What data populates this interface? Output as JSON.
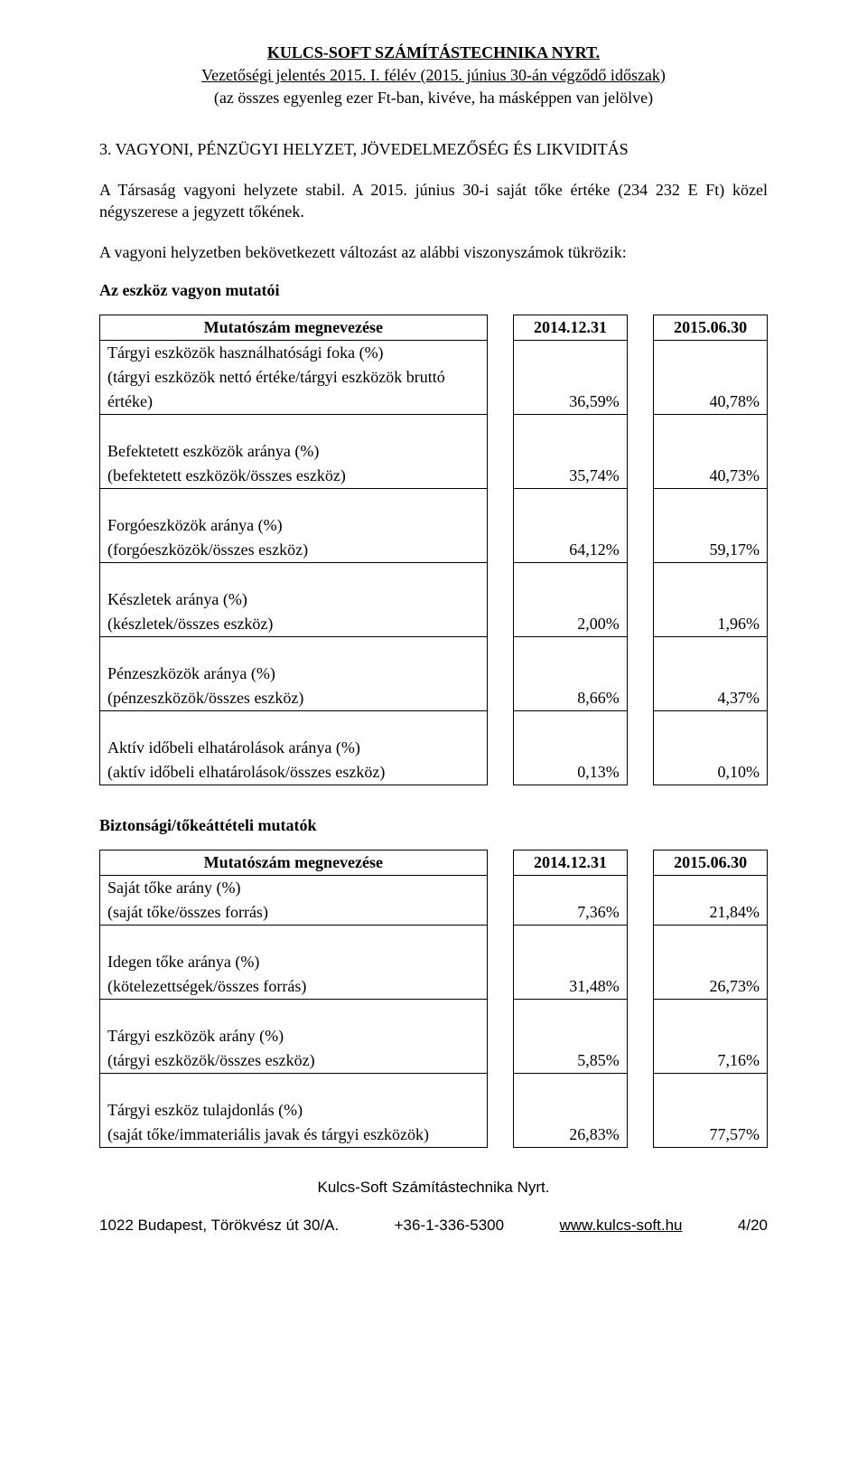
{
  "header": {
    "title": "KULCS-SOFT SZÁMÍTÁSTECHNIKA NYRT.",
    "subtitle": "Vezetőségi jelentés 2015. I. félév (2015. június 30-án végződő időszak)",
    "note": "(az összes egyenleg ezer Ft-ban, kivéve, ha másképpen van jelölve)"
  },
  "section": {
    "heading": "3.    VAGYONI, PÉNZÜGYI HELYZET, JÖVEDELMEZŐSÉG ÉS LIKVIDITÁS",
    "p1": "A Társaság vagyoni helyzete stabil. A 2015. június 30-i saját tőke értéke (234 232 E Ft) közel négyszerese a jegyzett tőkének.",
    "p2": "A vagyoni helyzetben bekövetkezett változást az alábbi viszonyszámok tükrözik:"
  },
  "table1": {
    "title": "Az eszköz vagyon mutatói",
    "col_label": "Mutatószám megnevezése",
    "col1": "2014.12.31",
    "col2": "2015.06.30",
    "rows": [
      {
        "l1": "Tárgyi eszközök használhatósági foka (%)",
        "l2": "(tárgyi eszközök nettó értéke/tárgyi eszközök bruttó",
        "l3": "értéke)",
        "v1": "36,59%",
        "v2": "40,78%"
      },
      {
        "l1": "Befektetett eszközök aránya (%)",
        "l2": "(befektetett eszközök/összes eszköz)",
        "v1": "35,74%",
        "v2": "40,73%"
      },
      {
        "l1": "Forgóeszközök aránya (%)",
        "l2": "(forgóeszközök/összes eszköz)",
        "v1": "64,12%",
        "v2": "59,17%"
      },
      {
        "l1": "Készletek aránya (%)",
        "l2": "(készletek/összes eszköz)",
        "v1": "2,00%",
        "v2": "1,96%"
      },
      {
        "l1": "Pénzeszközök aránya (%)",
        "l2": "(pénzeszközök/összes eszköz)",
        "v1": "8,66%",
        "v2": "4,37%"
      },
      {
        "l1": "Aktív időbeli elhatárolások aránya (%)",
        "l2": "(aktív időbeli elhatárolások/összes eszköz)",
        "v1": "0,13%",
        "v2": "0,10%"
      }
    ]
  },
  "table2": {
    "title": "Biztonsági/tőkeáttételi mutatók",
    "col_label": "Mutatószám megnevezése",
    "col1": "2014.12.31",
    "col2": "2015.06.30",
    "rows": [
      {
        "l1": "Saját tőke arány (%)",
        "l2": "(saját tőke/összes forrás)",
        "v1": "7,36%",
        "v2": "21,84%"
      },
      {
        "l1": "Idegen tőke aránya (%)",
        "l2": "(kötelezettségek/összes forrás)",
        "v1": "31,48%",
        "v2": "26,73%"
      },
      {
        "l1": "Tárgyi eszközök arány (%)",
        "l2": "(tárgyi eszközök/összes eszköz)",
        "v1": "5,85%",
        "v2": "7,16%"
      },
      {
        "l1": "Tárgyi eszköz tulajdonlás (%)",
        "l2": "(saját tőke/immateriális javak és tárgyi eszközök)",
        "v1": "26,83%",
        "v2": "77,57%"
      }
    ]
  },
  "footer": {
    "company": "Kulcs-Soft Számítástechnika Nyrt.",
    "address": "1022 Budapest, Törökvész út 30/A.",
    "phone": "+36-1-336-5300",
    "website": "www.kulcs-soft.hu",
    "page": "4/20"
  }
}
